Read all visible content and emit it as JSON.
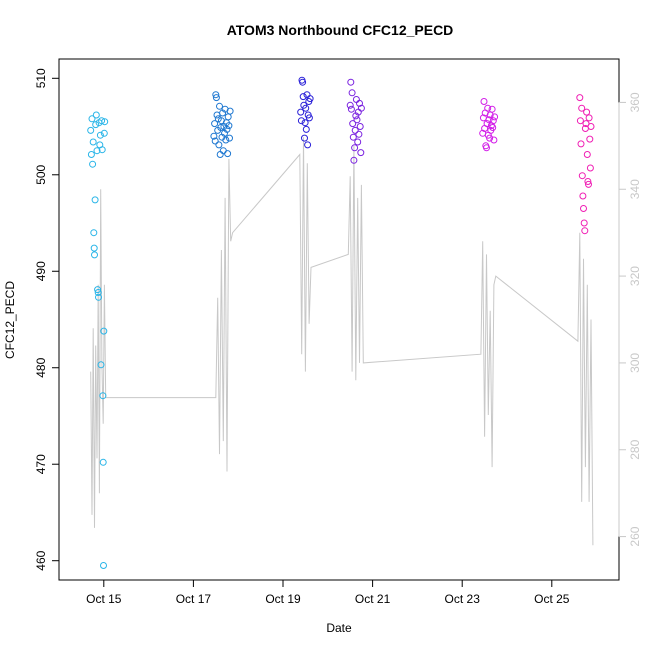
{
  "chart_data": {
    "type": "scatter",
    "title": "ATOM3 Northbound CFC12_PECD",
    "xlabel": "Date",
    "ylabel": "CFC12_PECD",
    "xlim": [
      "2016-10-14T00:00",
      "2016-10-26T12:00"
    ],
    "ylim": [
      458,
      512
    ],
    "y2lim": [
      250,
      370
    ],
    "x_ticks": [
      {
        "date": "2016-10-15T00:00",
        "label": "Oct 15"
      },
      {
        "date": "2016-10-17T00:00",
        "label": "Oct 17"
      },
      {
        "date": "2016-10-19T00:00",
        "label": "Oct 19"
      },
      {
        "date": "2016-10-21T00:00",
        "label": "Oct 21"
      },
      {
        "date": "2016-10-23T00:00",
        "label": "Oct 23"
      },
      {
        "date": "2016-10-25T00:00",
        "label": "Oct 25"
      }
    ],
    "y_ticks": [
      {
        "value": 460,
        "label": "460"
      },
      {
        "value": 470,
        "label": "470"
      },
      {
        "value": 480,
        "label": "480"
      },
      {
        "value": 490,
        "label": "490"
      },
      {
        "value": 500,
        "label": "500"
      },
      {
        "value": 510,
        "label": "510"
      }
    ],
    "y2_ticks": [
      {
        "value": 260,
        "label": "260"
      },
      {
        "value": 280,
        "label": "280"
      },
      {
        "value": 300,
        "label": "300"
      },
      {
        "value": 320,
        "label": "320"
      },
      {
        "value": 340,
        "label": "340"
      },
      {
        "value": 360,
        "label": "360"
      }
    ],
    "grid": false,
    "legend": "none",
    "series": [
      {
        "type": "scatter",
        "marker": "open-circle",
        "points": [
          {
            "x": "2016-10-14T17:00",
            "y": 504.6,
            "color": "#29b5e8"
          },
          {
            "x": "2016-10-14T17:20",
            "y": 502.1,
            "color": "#29b5e8"
          },
          {
            "x": "2016-10-14T17:40",
            "y": 505.8,
            "color": "#29b5e8"
          },
          {
            "x": "2016-10-14T18:00",
            "y": 501.1,
            "color": "#29b5e8"
          },
          {
            "x": "2016-10-14T18:20",
            "y": 503.4,
            "color": "#29b5e8"
          },
          {
            "x": "2016-10-14T18:40",
            "y": 494.0,
            "color": "#29b5e8"
          },
          {
            "x": "2016-10-14T18:50",
            "y": 492.4,
            "color": "#29b5e8"
          },
          {
            "x": "2016-10-14T19:00",
            "y": 491.7,
            "color": "#29b5e8"
          },
          {
            "x": "2016-10-14T19:20",
            "y": 497.4,
            "color": "#29b5e8"
          },
          {
            "x": "2016-10-14T19:40",
            "y": 505.2,
            "color": "#29b5e8"
          },
          {
            "x": "2016-10-14T20:00",
            "y": 506.2,
            "color": "#29b5e8"
          },
          {
            "x": "2016-10-14T20:20",
            "y": 502.5,
            "color": "#29b5e8"
          },
          {
            "x": "2016-10-14T20:40",
            "y": 488.1,
            "color": "#29b5e8"
          },
          {
            "x": "2016-10-14T21:00",
            "y": 487.8,
            "color": "#29b5e8"
          },
          {
            "x": "2016-10-14T21:10",
            "y": 487.3,
            "color": "#29b5e8"
          },
          {
            "x": "2016-10-14T21:30",
            "y": 505.4,
            "color": "#29b5e8"
          },
          {
            "x": "2016-10-14T21:50",
            "y": 503.1,
            "color": "#29b5e8"
          },
          {
            "x": "2016-10-14T22:10",
            "y": 504.1,
            "color": "#29b5e8"
          },
          {
            "x": "2016-10-14T22:30",
            "y": 480.3,
            "color": "#29b5e8"
          },
          {
            "x": "2016-10-14T22:50",
            "y": 505.6,
            "color": "#29b5e8"
          },
          {
            "x": "2016-10-14T23:10",
            "y": 502.6,
            "color": "#29b5e8"
          },
          {
            "x": "2016-10-14T23:30",
            "y": 477.1,
            "color": "#29b5e8"
          },
          {
            "x": "2016-10-14T23:40",
            "y": 470.2,
            "color": "#29b5e8"
          },
          {
            "x": "2016-10-14T23:50",
            "y": 459.5,
            "color": "#29b5e8"
          },
          {
            "x": "2016-10-15T00:00",
            "y": 483.8,
            "color": "#29b5e8"
          },
          {
            "x": "2016-10-15T00:15",
            "y": 504.3,
            "color": "#29b5e8"
          },
          {
            "x": "2016-10-15T00:30",
            "y": 505.5,
            "color": "#29b5e8"
          },
          {
            "x": "2016-10-17T11:00",
            "y": 504.0,
            "color": "#1f78d1"
          },
          {
            "x": "2016-10-17T11:20",
            "y": 505.3,
            "color": "#1f78d1"
          },
          {
            "x": "2016-10-17T11:40",
            "y": 503.5,
            "color": "#1f78d1"
          },
          {
            "x": "2016-10-17T12:00",
            "y": 508.3,
            "color": "#1f78d1"
          },
          {
            "x": "2016-10-17T12:20",
            "y": 508.0,
            "color": "#1f78d1"
          },
          {
            "x": "2016-10-17T12:40",
            "y": 506.2,
            "color": "#1f78d1"
          },
          {
            "x": "2016-10-17T13:00",
            "y": 504.6,
            "color": "#1f78d1"
          },
          {
            "x": "2016-10-17T13:20",
            "y": 505.8,
            "color": "#1f78d1"
          },
          {
            "x": "2016-10-17T13:40",
            "y": 503.1,
            "color": "#1f78d1"
          },
          {
            "x": "2016-10-17T14:00",
            "y": 507.1,
            "color": "#1f78d1"
          },
          {
            "x": "2016-10-17T14:20",
            "y": 502.1,
            "color": "#1f78d1"
          },
          {
            "x": "2016-10-17T14:40",
            "y": 504.9,
            "color": "#1f78d1"
          },
          {
            "x": "2016-10-17T15:00",
            "y": 505.6,
            "color": "#1f78d1"
          },
          {
            "x": "2016-10-17T15:20",
            "y": 503.9,
            "color": "#1f78d1"
          },
          {
            "x": "2016-10-17T15:40",
            "y": 506.4,
            "color": "#1f78d1"
          },
          {
            "x": "2016-10-17T16:00",
            "y": 502.5,
            "color": "#1f78d1"
          },
          {
            "x": "2016-10-17T16:20",
            "y": 505.0,
            "color": "#1f78d1"
          },
          {
            "x": "2016-10-17T16:40",
            "y": 504.3,
            "color": "#1f78d1"
          },
          {
            "x": "2016-10-17T17:00",
            "y": 506.8,
            "color": "#1f78d1"
          },
          {
            "x": "2016-10-17T17:20",
            "y": 503.6,
            "color": "#1f78d1"
          },
          {
            "x": "2016-10-17T17:40",
            "y": 505.4,
            "color": "#1f78d1"
          },
          {
            "x": "2016-10-17T18:00",
            "y": 504.7,
            "color": "#1f78d1"
          },
          {
            "x": "2016-10-17T18:20",
            "y": 502.2,
            "color": "#1f78d1"
          },
          {
            "x": "2016-10-17T18:40",
            "y": 506.0,
            "color": "#1f78d1"
          },
          {
            "x": "2016-10-17T19:00",
            "y": 505.1,
            "color": "#1f78d1"
          },
          {
            "x": "2016-10-17T19:20",
            "y": 503.8,
            "color": "#1f78d1"
          },
          {
            "x": "2016-10-17T19:40",
            "y": 506.6,
            "color": "#1f78d1"
          },
          {
            "x": "2016-10-19T09:30",
            "y": 506.5,
            "color": "#2a20d8"
          },
          {
            "x": "2016-10-19T09:50",
            "y": 505.6,
            "color": "#2a20d8"
          },
          {
            "x": "2016-10-19T10:10",
            "y": 509.8,
            "color": "#2a20d8"
          },
          {
            "x": "2016-10-19T10:30",
            "y": 509.6,
            "color": "#2a20d8"
          },
          {
            "x": "2016-10-19T10:50",
            "y": 508.1,
            "color": "#2a20d8"
          },
          {
            "x": "2016-10-19T11:10",
            "y": 507.2,
            "color": "#2a20d8"
          },
          {
            "x": "2016-10-19T11:30",
            "y": 503.8,
            "color": "#2a20d8"
          },
          {
            "x": "2016-10-19T11:50",
            "y": 505.4,
            "color": "#2a20d8"
          },
          {
            "x": "2016-10-19T12:10",
            "y": 506.9,
            "color": "#2a20d8"
          },
          {
            "x": "2016-10-19T12:30",
            "y": 504.7,
            "color": "#2a20d8"
          },
          {
            "x": "2016-10-19T12:50",
            "y": 508.3,
            "color": "#2a20d8"
          },
          {
            "x": "2016-10-19T13:10",
            "y": 503.1,
            "color": "#2a20d8"
          },
          {
            "x": "2016-10-19T13:30",
            "y": 506.2,
            "color": "#2a20d8"
          },
          {
            "x": "2016-10-19T13:50",
            "y": 507.6,
            "color": "#2a20d8"
          },
          {
            "x": "2016-10-19T14:10",
            "y": 505.9,
            "color": "#2a20d8"
          },
          {
            "x": "2016-10-19T14:30",
            "y": 507.9,
            "color": "#2a20d8"
          },
          {
            "x": "2016-10-20T12:00",
            "y": 507.2,
            "color": "#7a22e0"
          },
          {
            "x": "2016-10-20T12:20",
            "y": 509.6,
            "color": "#7a22e0"
          },
          {
            "x": "2016-10-20T12:40",
            "y": 506.8,
            "color": "#7a22e0"
          },
          {
            "x": "2016-10-20T13:00",
            "y": 508.5,
            "color": "#7a22e0"
          },
          {
            "x": "2016-10-20T13:20",
            "y": 505.3,
            "color": "#7a22e0"
          },
          {
            "x": "2016-10-20T13:40",
            "y": 503.9,
            "color": "#7a22e0"
          },
          {
            "x": "2016-10-20T14:00",
            "y": 501.5,
            "color": "#7a22e0"
          },
          {
            "x": "2016-10-20T14:20",
            "y": 502.8,
            "color": "#7a22e0"
          },
          {
            "x": "2016-10-20T14:40",
            "y": 504.6,
            "color": "#7a22e0"
          },
          {
            "x": "2016-10-20T15:00",
            "y": 506.1,
            "color": "#7a22e0"
          },
          {
            "x": "2016-10-20T15:20",
            "y": 507.8,
            "color": "#7a22e0"
          },
          {
            "x": "2016-10-20T15:40",
            "y": 505.7,
            "color": "#7a22e0"
          },
          {
            "x": "2016-10-20T16:00",
            "y": 503.4,
            "color": "#7a22e0"
          },
          {
            "x": "2016-10-20T16:20",
            "y": 506.5,
            "color": "#7a22e0"
          },
          {
            "x": "2016-10-20T16:40",
            "y": 504.2,
            "color": "#7a22e0"
          },
          {
            "x": "2016-10-20T17:00",
            "y": 507.4,
            "color": "#7a22e0"
          },
          {
            "x": "2016-10-20T17:20",
            "y": 505.0,
            "color": "#7a22e0"
          },
          {
            "x": "2016-10-20T17:40",
            "y": 502.3,
            "color": "#7a22e0"
          },
          {
            "x": "2016-10-20T18:00",
            "y": 506.9,
            "color": "#7a22e0"
          },
          {
            "x": "2016-10-23T11:00",
            "y": 504.3,
            "color": "#d21ee8"
          },
          {
            "x": "2016-10-23T11:20",
            "y": 505.9,
            "color": "#d21ee8"
          },
          {
            "x": "2016-10-23T11:40",
            "y": 507.6,
            "color": "#d21ee8"
          },
          {
            "x": "2016-10-23T12:00",
            "y": 504.8,
            "color": "#d21ee8"
          },
          {
            "x": "2016-10-23T12:20",
            "y": 506.4,
            "color": "#d21ee8"
          },
          {
            "x": "2016-10-23T12:40",
            "y": 503.0,
            "color": "#d21ee8"
          },
          {
            "x": "2016-10-23T13:00",
            "y": 502.8,
            "color": "#d21ee8"
          },
          {
            "x": "2016-10-23T13:20",
            "y": 505.3,
            "color": "#d21ee8"
          },
          {
            "x": "2016-10-23T13:40",
            "y": 506.9,
            "color": "#d21ee8"
          },
          {
            "x": "2016-10-23T14:00",
            "y": 504.1,
            "color": "#d21ee8"
          },
          {
            "x": "2016-10-23T14:20",
            "y": 505.7,
            "color": "#d21ee8"
          },
          {
            "x": "2016-10-23T14:40",
            "y": 503.8,
            "color": "#d21ee8"
          },
          {
            "x": "2016-10-23T15:00",
            "y": 506.2,
            "color": "#d21ee8"
          },
          {
            "x": "2016-10-23T15:20",
            "y": 504.6,
            "color": "#d21ee8"
          },
          {
            "x": "2016-10-23T15:40",
            "y": 505.1,
            "color": "#d21ee8"
          },
          {
            "x": "2016-10-23T16:00",
            "y": 506.8,
            "color": "#d21ee8"
          },
          {
            "x": "2016-10-23T16:20",
            "y": 504.9,
            "color": "#d21ee8"
          },
          {
            "x": "2016-10-23T16:40",
            "y": 505.6,
            "color": "#d21ee8"
          },
          {
            "x": "2016-10-23T17:00",
            "y": 503.6,
            "color": "#d21ee8"
          },
          {
            "x": "2016-10-23T17:20",
            "y": 506.0,
            "color": "#d21ee8"
          },
          {
            "x": "2016-10-25T15:00",
            "y": 508.0,
            "color": "#f01eb4"
          },
          {
            "x": "2016-10-25T15:20",
            "y": 505.6,
            "color": "#f01eb4"
          },
          {
            "x": "2016-10-25T15:40",
            "y": 503.2,
            "color": "#f01eb4"
          },
          {
            "x": "2016-10-25T16:00",
            "y": 506.9,
            "color": "#f01eb4"
          },
          {
            "x": "2016-10-25T16:20",
            "y": 499.9,
            "color": "#f01eb4"
          },
          {
            "x": "2016-10-25T16:40",
            "y": 497.8,
            "color": "#f01eb4"
          },
          {
            "x": "2016-10-25T17:00",
            "y": 496.5,
            "color": "#f01eb4"
          },
          {
            "x": "2016-10-25T17:20",
            "y": 495.0,
            "color": "#f01eb4"
          },
          {
            "x": "2016-10-25T17:40",
            "y": 494.2,
            "color": "#f01eb4"
          },
          {
            "x": "2016-10-25T18:00",
            "y": 504.8,
            "color": "#f01eb4"
          },
          {
            "x": "2016-10-25T18:20",
            "y": 505.3,
            "color": "#f01eb4"
          },
          {
            "x": "2016-10-25T18:40",
            "y": 506.5,
            "color": "#f01eb4"
          },
          {
            "x": "2016-10-25T19:00",
            "y": 502.1,
            "color": "#f01eb4"
          },
          {
            "x": "2016-10-25T19:20",
            "y": 499.3,
            "color": "#f01eb4"
          },
          {
            "x": "2016-10-25T19:40",
            "y": 499.0,
            "color": "#f01eb4"
          },
          {
            "x": "2016-10-25T20:00",
            "y": 505.9,
            "color": "#f01eb4"
          },
          {
            "x": "2016-10-25T20:20",
            "y": 503.7,
            "color": "#f01eb4"
          },
          {
            "x": "2016-10-25T20:40",
            "y": 500.7,
            "color": "#f01eb4"
          },
          {
            "x": "2016-10-25T21:00",
            "y": 505.0,
            "color": "#f01eb4"
          }
        ]
      },
      {
        "type": "line",
        "axis": "right",
        "color": "#c8c8c8",
        "x": [
          "2016-10-14T17:00",
          "2016-10-14T17:40",
          "2016-10-14T18:20",
          "2016-10-14T19:00",
          "2016-10-14T19:40",
          "2016-10-14T20:20",
          "2016-10-14T21:00",
          "2016-10-14T21:40",
          "2016-10-14T22:20",
          "2016-10-14T23:00",
          "2016-10-14T23:40",
          "2016-10-15T00:20",
          "2016-10-15T01:00",
          "2016-10-17T12:00",
          "2016-10-17T13:00",
          "2016-10-17T14:00",
          "2016-10-17T15:00",
          "2016-10-17T16:00",
          "2016-10-17T17:00",
          "2016-10-17T18:00",
          "2016-10-17T19:00",
          "2016-10-17T20:00",
          "2016-10-17T21:00",
          "2016-10-19T09:00",
          "2016-10-19T10:00",
          "2016-10-19T11:00",
          "2016-10-19T12:00",
          "2016-10-19T13:00",
          "2016-10-19T14:00",
          "2016-10-19T15:00",
          "2016-10-20T11:00",
          "2016-10-20T12:00",
          "2016-10-20T13:00",
          "2016-10-20T14:00",
          "2016-10-20T15:00",
          "2016-10-20T16:00",
          "2016-10-20T17:00",
          "2016-10-20T18:00",
          "2016-10-20T19:00",
          "2016-10-23T10:00",
          "2016-10-23T11:00",
          "2016-10-23T12:00",
          "2016-10-23T13:00",
          "2016-10-23T14:00",
          "2016-10-23T15:00",
          "2016-10-23T16:00",
          "2016-10-23T17:00",
          "2016-10-23T18:00",
          "2016-10-25T14:00",
          "2016-10-25T15:00",
          "2016-10-25T16:00",
          "2016-10-25T17:00",
          "2016-10-25T18:00",
          "2016-10-25T19:00",
          "2016-10-25T20:00",
          "2016-10-25T21:00",
          "2016-10-25T22:00"
        ],
        "y": [
          298,
          265,
          308,
          262,
          304,
          278,
          318,
          270,
          340,
          300,
          286,
          318,
          292,
          292,
          315,
          279,
          326,
          282,
          338,
          275,
          347,
          328,
          330,
          348,
          302,
          352,
          298,
          346,
          309,
          322,
          325,
          343,
          298,
          350,
          296,
          338,
          300,
          341,
          300,
          302,
          328,
          283,
          325,
          288,
          312,
          276,
          318,
          320,
          305,
          330,
          268,
          324,
          276,
          318,
          268,
          310,
          258
        ]
      }
    ]
  }
}
